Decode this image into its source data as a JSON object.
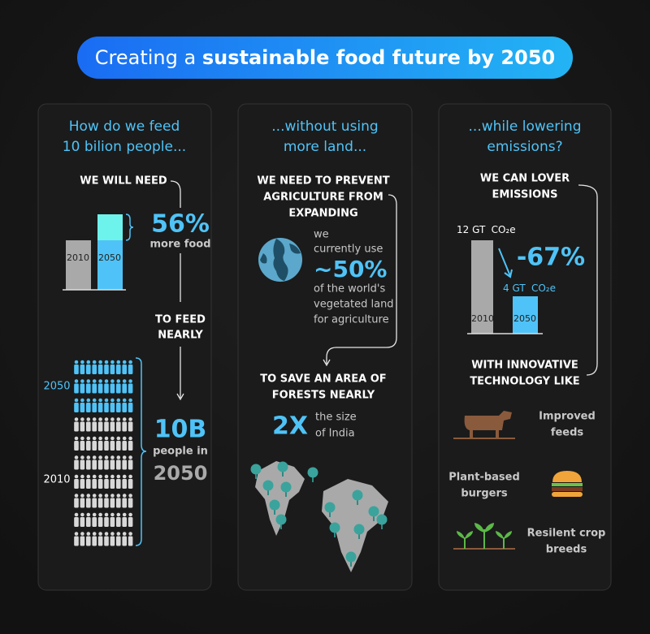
{
  "header": {
    "title_plain": "Creating a",
    "title_bold": "sustainable food future by 2050"
  },
  "panels": [
    {
      "heading": [
        "How do we feed",
        "10 bilion people..."
      ],
      "need": "WE WILL NEED",
      "bar_labels": [
        "2010",
        "2050"
      ],
      "increase": "56%",
      "increase_caption": "more food",
      "to_feed": [
        "TO FEED",
        "NEARLY"
      ],
      "people_labels": [
        "2050",
        "2010"
      ],
      "population": "10B",
      "population_caption": "people in",
      "population_year": "2050"
    },
    {
      "heading": [
        "...without using",
        "more land..."
      ],
      "need": [
        "WE NEED TO PREVENT",
        "AGRICULTURE FROM",
        "EXPANDING"
      ],
      "land_text_before": [
        "we",
        "currently use"
      ],
      "land_share": "~50%",
      "land_text_after": [
        "of the world's",
        "vegetated land",
        "for agriculture"
      ],
      "save": [
        "TO SAVE AN AREA OF",
        "FORESTS NEARLY"
      ],
      "multiple": "2X",
      "multiple_caption": [
        "the size",
        "of India"
      ]
    },
    {
      "heading": [
        "...while lowering",
        "emissions?"
      ],
      "need": [
        "WE CAN LOVER",
        "EMISSIONS"
      ],
      "emission_2010": [
        "12 GT",
        "CO₂e"
      ],
      "emission_2050": [
        "4 GT",
        "CO₂e"
      ],
      "bar_labels": [
        "2010",
        "2050"
      ],
      "reduction": "-67%",
      "technology": [
        "WITH INNOVATIVE",
        "TECHNOLOGY LIKE"
      ],
      "items": [
        [
          "Improved",
          "feeds"
        ],
        [
          "Plant-based",
          "burgers"
        ],
        [
          "Resilent crop",
          "breeds"
        ]
      ]
    }
  ]
}
